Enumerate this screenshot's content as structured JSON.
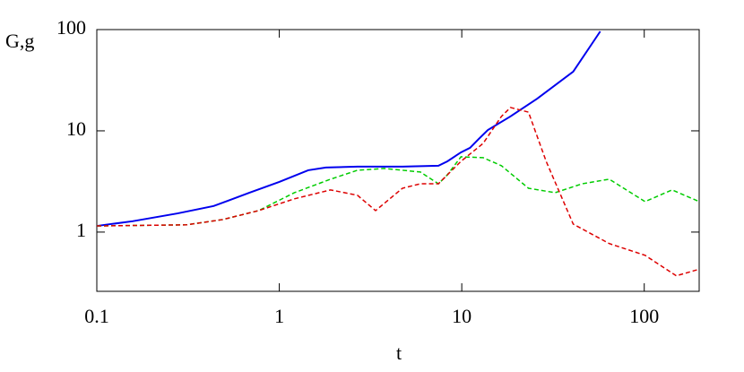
{
  "chart_data": {
    "type": "line",
    "xlabel": "t",
    "ylabel": "G,g",
    "xscale": "log",
    "yscale": "log",
    "xlim": [
      0.1,
      200
    ],
    "ylim": [
      0.26,
      100
    ],
    "xticks": [
      0.1,
      1,
      10,
      100
    ],
    "yticks": [
      1,
      10,
      100
    ],
    "series": [
      {
        "color": "#0000ee",
        "dash": "solid",
        "x": [
          0.1,
          0.157,
          0.277,
          0.437,
          0.687,
          1,
          1.44,
          1.8,
          2.68,
          4.73,
          7.45,
          8.34,
          9.9,
          11.1,
          12.4,
          13.9,
          18.5,
          25.9,
          40.8,
          57.4
        ],
        "values": [
          1.15,
          1.28,
          1.53,
          1.81,
          2.45,
          3.13,
          4.08,
          4.34,
          4.43,
          4.43,
          4.52,
          5.0,
          6.13,
          6.79,
          8.32,
          10.2,
          13.9,
          20.8,
          38.4,
          96
        ]
      },
      {
        "color": "#00cc00",
        "dash": "dashed",
        "x": [
          0.1,
          0.311,
          0.49,
          0.77,
          1.21,
          1.91,
          2.68,
          3.77,
          5.93,
          7.45,
          8.34,
          9.9,
          13.1,
          16.5,
          23.2,
          32.5,
          45.7,
          64.3,
          101,
          142,
          200
        ],
        "values": [
          1.15,
          1.18,
          1.33,
          1.63,
          2.45,
          3.33,
          4.08,
          4.25,
          3.92,
          3.0,
          3.68,
          5.54,
          5.43,
          4.52,
          2.71,
          2.45,
          3.0,
          3.33,
          2.0,
          2.61,
          2.0
        ]
      },
      {
        "color": "#dd0000",
        "dash": "dashed",
        "x": [
          0.1,
          0.311,
          0.49,
          0.77,
          1.21,
          1.91,
          2.68,
          3.37,
          4.73,
          5.93,
          7.45,
          9.9,
          13.1,
          16.5,
          18.5,
          23.2,
          29.0,
          40.8,
          64.3,
          101,
          150,
          200
        ],
        "values": [
          1.15,
          1.18,
          1.33,
          1.63,
          2.13,
          2.61,
          2.31,
          1.63,
          2.71,
          3.0,
          3.0,
          5.0,
          7.52,
          13.9,
          17.0,
          15.3,
          5.0,
          1.2,
          0.77,
          0.59,
          0.37,
          0.43
        ]
      }
    ]
  }
}
